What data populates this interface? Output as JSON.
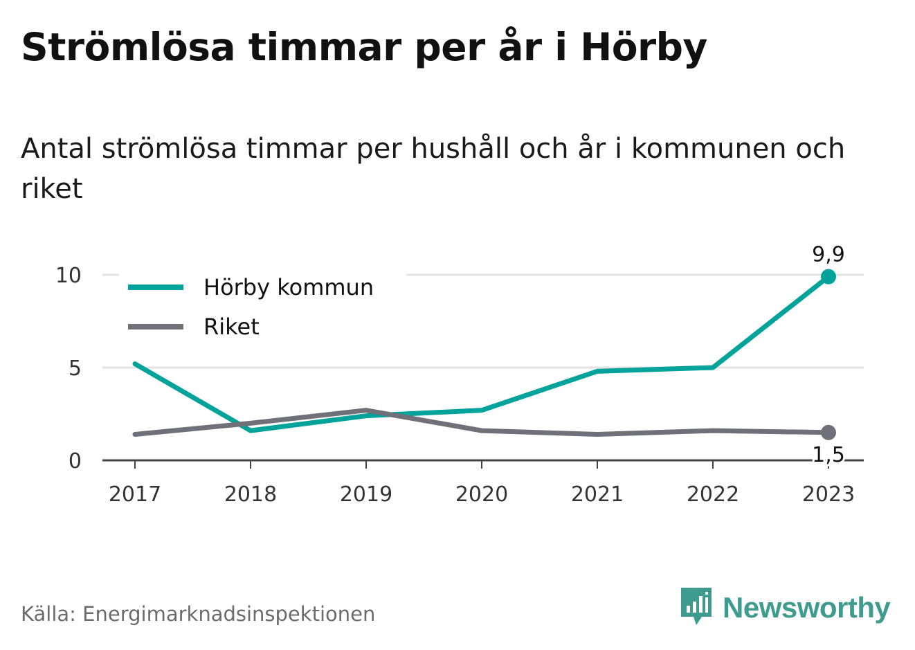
{
  "title": "Strömlösa timmar per år i Hörby",
  "subtitle": "Antal strömlösa timmar per hushåll och år i kommunen och riket",
  "source": "Källa: Energimarknadsinspektionen",
  "brand": "Newsworthy",
  "colors": {
    "horby": "#00a39a",
    "riket": "#707078",
    "grid": "#e3e3e3",
    "axis": "#444444",
    "brand": "#3f9b8d"
  },
  "chart_data": {
    "type": "line",
    "x": [
      "2017",
      "2018",
      "2019",
      "2020",
      "2021",
      "2022",
      "2023"
    ],
    "ylim": [
      0,
      10
    ],
    "yticks": [
      0,
      5,
      10
    ],
    "ytick_labels": [
      "0",
      "5",
      "10"
    ],
    "grid": true,
    "legend": "top-left",
    "series": [
      {
        "name": "Hörby kommun",
        "color": "#00a39a",
        "values": [
          5.2,
          1.6,
          2.4,
          2.7,
          4.8,
          5.0,
          9.9
        ],
        "end_label": "9,9"
      },
      {
        "name": "Riket",
        "color": "#707078",
        "values": [
          1.4,
          2.0,
          2.7,
          1.6,
          1.4,
          1.6,
          1.5
        ],
        "end_label": "1,5"
      }
    ]
  }
}
